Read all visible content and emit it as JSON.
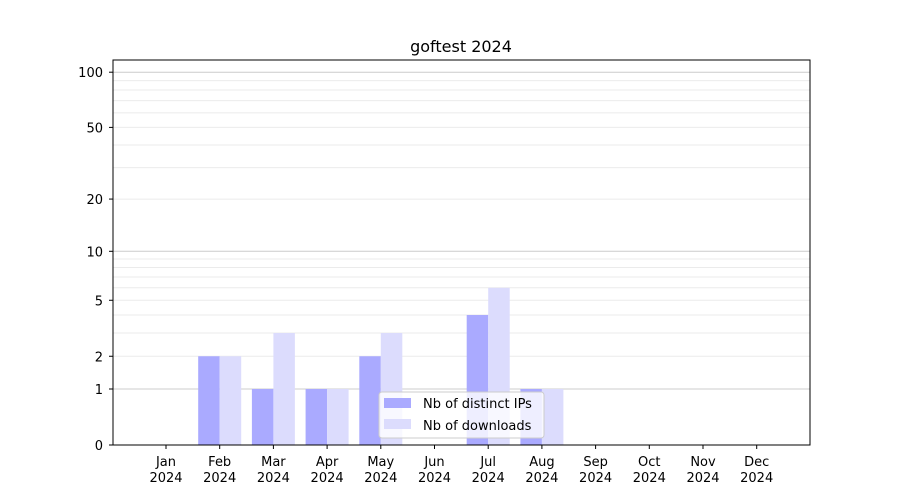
{
  "chart_data": {
    "type": "bar",
    "title": "goftest 2024",
    "xlabel": "",
    "ylabel": "",
    "y_scale": "log10(y+1)",
    "ylim": [
      0,
      116
    ],
    "yticks": [
      0,
      1,
      2,
      5,
      10,
      20,
      50,
      100
    ],
    "grid": true,
    "legend_position": "lower-center",
    "categories": [
      "Jan\n2024",
      "Feb\n2024",
      "Mar\n2024",
      "Apr\n2024",
      "May\n2024",
      "Jun\n2024",
      "Jul\n2024",
      "Aug\n2024",
      "Sep\n2024",
      "Oct\n2024",
      "Nov\n2024",
      "Dec\n2024"
    ],
    "series": [
      {
        "name": "Nb of distinct IPs",
        "color": "#aaaaff",
        "values": [
          0,
          2,
          1,
          1,
          2,
          0,
          4,
          1,
          0,
          0,
          0,
          0
        ]
      },
      {
        "name": "Nb of downloads",
        "color": "#dcdcfd",
        "values": [
          0,
          2,
          3,
          1,
          3,
          0,
          6,
          1,
          0,
          0,
          0,
          0
        ]
      }
    ]
  }
}
